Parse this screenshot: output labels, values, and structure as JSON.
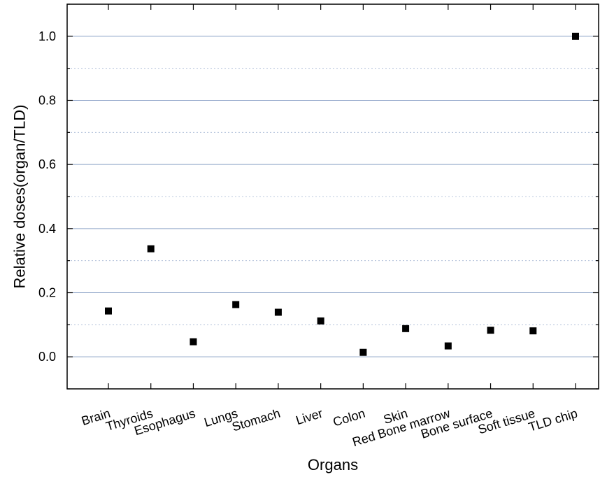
{
  "chart_data": {
    "type": "scatter",
    "title": "",
    "xlabel": "Organs",
    "ylabel": "Relative doses(organ/TLD)",
    "categories": [
      "Brain",
      "Thyroids",
      "Esophagus",
      "Lungs",
      "Stomach",
      "Liver",
      "Colon",
      "Skin",
      "Red Bone marrow",
      "Bone surface",
      "Soft tissue",
      "TLD chip"
    ],
    "values": [
      0.143,
      0.337,
      0.047,
      0.163,
      0.139,
      0.112,
      0.014,
      0.088,
      0.034,
      0.083,
      0.081,
      1.0
    ],
    "ylim": [
      -0.1,
      1.1
    ],
    "yticks": [
      "0.0",
      "0.2",
      "0.4",
      "0.6",
      "0.8",
      "1.0"
    ],
    "grid": true,
    "colors": {
      "marker": "#000000",
      "gridline": "#8ea4c8",
      "axis": "#000000"
    }
  }
}
